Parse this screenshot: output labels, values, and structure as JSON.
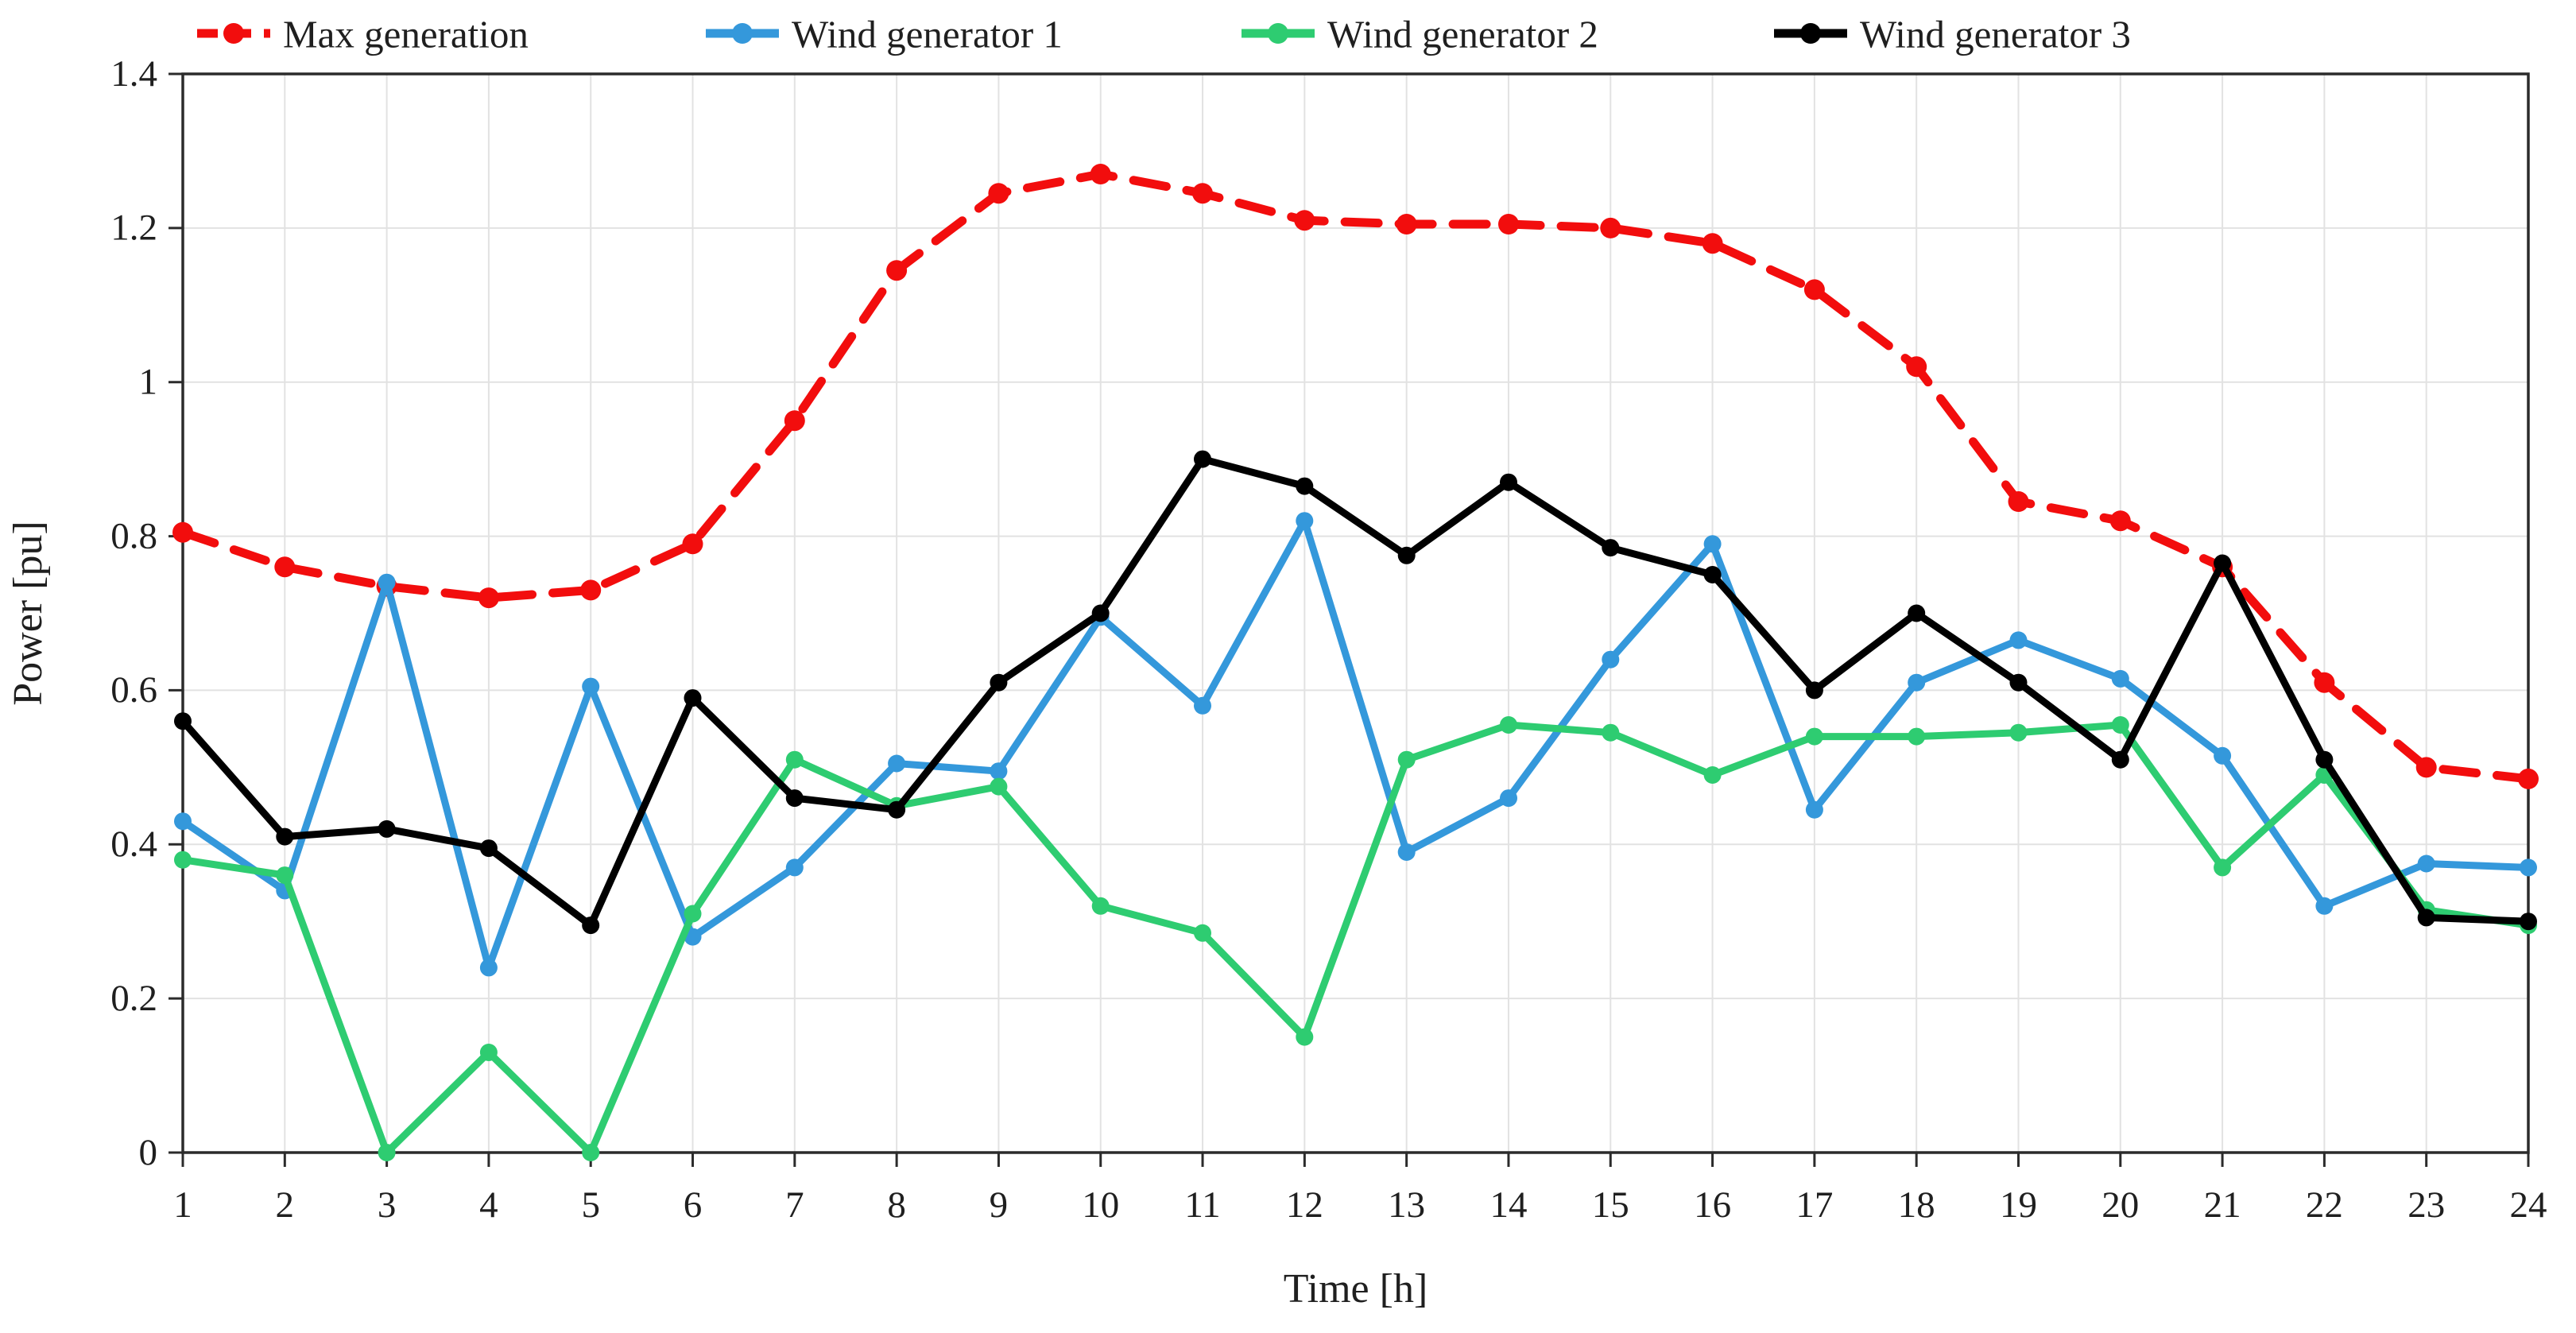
{
  "chart_data": {
    "type": "line",
    "title": "",
    "xlabel": "Time [h]",
    "ylabel": "Power [pu]",
    "xlim": [
      1,
      24
    ],
    "ylim": [
      0,
      1.4
    ],
    "grid": true,
    "legend_position": "top-horizontal",
    "background_color": "#ffffff",
    "grid_color": "#e2e2e2",
    "axis_color": "#2b2b2b",
    "x": [
      1,
      2,
      3,
      4,
      5,
      6,
      7,
      8,
      9,
      10,
      11,
      12,
      13,
      14,
      15,
      16,
      17,
      18,
      19,
      20,
      21,
      22,
      23,
      24
    ],
    "x_tick_labels": [
      "1",
      "2",
      "3",
      "4",
      "5",
      "6",
      "7",
      "8",
      "9",
      "10",
      "11",
      "12",
      "13",
      "14",
      "15",
      "16",
      "17",
      "18",
      "19",
      "20",
      "21",
      "22",
      "23",
      "24"
    ],
    "y_ticks": [
      0,
      0.2,
      0.4,
      0.6,
      0.8,
      1.0,
      1.2,
      1.4
    ],
    "y_tick_labels": [
      "0",
      "0.2",
      "0.4",
      "0.6",
      "0.8",
      "1",
      "1.2",
      "1.4"
    ],
    "series": [
      {
        "name": "Max generation",
        "color": "#f20d0d",
        "line_style": "dashed",
        "marker": "circle",
        "values": [
          0.805,
          0.76,
          0.735,
          0.72,
          0.73,
          0.79,
          0.95,
          1.145,
          1.245,
          1.27,
          1.245,
          1.21,
          1.205,
          1.205,
          1.2,
          1.18,
          1.12,
          1.02,
          0.845,
          0.82,
          0.76,
          0.61,
          0.5,
          0.485
        ]
      },
      {
        "name": "Wind generator 1",
        "color": "#3498db",
        "line_style": "solid",
        "marker": "circle",
        "values": [
          0.43,
          0.34,
          0.74,
          0.24,
          0.605,
          0.28,
          0.37,
          0.505,
          0.495,
          0.695,
          0.58,
          0.82,
          0.39,
          0.46,
          0.64,
          0.79,
          0.445,
          0.61,
          0.665,
          0.615,
          0.515,
          0.32,
          0.375,
          0.37
        ]
      },
      {
        "name": "Wind generator 2",
        "color": "#2ecc71",
        "line_style": "solid",
        "marker": "circle",
        "values": [
          0.38,
          0.36,
          0.0,
          0.13,
          0.0,
          0.31,
          0.51,
          0.45,
          0.475,
          0.32,
          0.285,
          0.15,
          0.51,
          0.555,
          0.545,
          0.49,
          0.54,
          0.54,
          0.545,
          0.555,
          0.37,
          0.49,
          0.315,
          0.295
        ]
      },
      {
        "name": "Wind generator 3",
        "color": "#000000",
        "line_style": "solid",
        "marker": "circle",
        "values": [
          0.56,
          0.41,
          0.42,
          0.395,
          0.295,
          0.59,
          0.46,
          0.445,
          0.61,
          0.7,
          0.9,
          0.865,
          0.775,
          0.87,
          0.785,
          0.75,
          0.6,
          0.7,
          0.61,
          0.51,
          0.765,
          0.51,
          0.305,
          0.3
        ]
      }
    ]
  }
}
